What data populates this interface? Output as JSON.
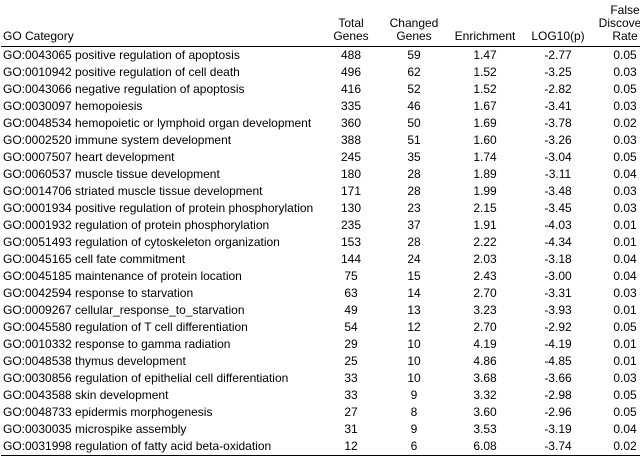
{
  "table": {
    "headers": [
      "GO Category",
      "Total\nGenes",
      "Changed\nGenes",
      "Enrichment",
      "LOG10(p)",
      "False\nDiscovery\nRate"
    ],
    "rows": [
      {
        "category": "GO:0043065 positive regulation of apoptosis",
        "total": "488",
        "changed": "59",
        "enrichment": "1.47",
        "log10p": "-2.77",
        "fdr": "0.05"
      },
      {
        "category": "GO:0010942 positive regulation of cell death",
        "total": "496",
        "changed": "62",
        "enrichment": "1.52",
        "log10p": "-3.25",
        "fdr": "0.03"
      },
      {
        "category": "GO:0043066 negative regulation of apoptosis",
        "total": "416",
        "changed": "52",
        "enrichment": "1.52",
        "log10p": "-2.82",
        "fdr": "0.05"
      },
      {
        "category": "GO:0030097 hemopoiesis",
        "total": "335",
        "changed": "46",
        "enrichment": "1.67",
        "log10p": "-3.41",
        "fdr": "0.03"
      },
      {
        "category": "GO:0048534 hemopoietic or lymphoid organ development",
        "total": "360",
        "changed": "50",
        "enrichment": "1.69",
        "log10p": "-3.78",
        "fdr": "0.02"
      },
      {
        "category": "GO:0002520 immune system development",
        "total": "388",
        "changed": "51",
        "enrichment": "1.60",
        "log10p": "-3.26",
        "fdr": "0.03"
      },
      {
        "category": "GO:0007507 heart development",
        "total": "245",
        "changed": "35",
        "enrichment": "1.74",
        "log10p": "-3.04",
        "fdr": "0.05"
      },
      {
        "category": "GO:0060537 muscle tissue development",
        "total": "180",
        "changed": "28",
        "enrichment": "1.89",
        "log10p": "-3.11",
        "fdr": "0.04"
      },
      {
        "category": "GO:0014706 striated muscle tissue development",
        "total": "171",
        "changed": "28",
        "enrichment": "1.99",
        "log10p": "-3.48",
        "fdr": "0.03"
      },
      {
        "category": "GO:0001934 positive regulation of protein phosphorylation",
        "total": "130",
        "changed": "23",
        "enrichment": "2.15",
        "log10p": "-3.45",
        "fdr": "0.03"
      },
      {
        "category": "GO:0001932 regulation of protein phosphorylation",
        "total": "235",
        "changed": "37",
        "enrichment": "1.91",
        "log10p": "-4.03",
        "fdr": "0.01"
      },
      {
        "category": "GO:0051493 regulation of cytoskeleton organization",
        "total": "153",
        "changed": "28",
        "enrichment": "2.22",
        "log10p": "-4.34",
        "fdr": "0.01"
      },
      {
        "category": "GO:0045165 cell fate commitment",
        "total": "144",
        "changed": "24",
        "enrichment": "2.03",
        "log10p": "-3.18",
        "fdr": "0.04"
      },
      {
        "category": "GO:0045185 maintenance of protein location",
        "total": "75",
        "changed": "15",
        "enrichment": "2.43",
        "log10p": "-3.00",
        "fdr": "0.04"
      },
      {
        "category": "GO:0042594 response to starvation",
        "total": "63",
        "changed": "14",
        "enrichment": "2.70",
        "log10p": "-3.31",
        "fdr": "0.03"
      },
      {
        "category": "GO:0009267 cellular_response_to_starvation",
        "total": "49",
        "changed": "13",
        "enrichment": "3.23",
        "log10p": "-3.93",
        "fdr": "0.01"
      },
      {
        "category": "GO:0045580 regulation of T cell differentiation",
        "total": "54",
        "changed": "12",
        "enrichment": "2.70",
        "log10p": "-2.92",
        "fdr": "0.05"
      },
      {
        "category": "GO:0010332 response to gamma radiation",
        "total": "29",
        "changed": "10",
        "enrichment": "4.19",
        "log10p": "-4.19",
        "fdr": "0.01"
      },
      {
        "category": "GO:0048538 thymus development",
        "total": "25",
        "changed": "10",
        "enrichment": "4.86",
        "log10p": "-4.85",
        "fdr": "0.01"
      },
      {
        "category": "GO:0030856 regulation of epithelial cell differentiation",
        "total": "33",
        "changed": "10",
        "enrichment": "3.68",
        "log10p": "-3.66",
        "fdr": "0.03"
      },
      {
        "category": "GO:0043588 skin development",
        "total": "33",
        "changed": "9",
        "enrichment": "3.32",
        "log10p": "-2.98",
        "fdr": "0.05"
      },
      {
        "category": "GO:0048733 epidermis morphogenesis",
        "total": "27",
        "changed": "8",
        "enrichment": "3.60",
        "log10p": "-2.96",
        "fdr": "0.05"
      },
      {
        "category": "GO:0030035 microspike assembly",
        "total": "31",
        "changed": "9",
        "enrichment": "3.53",
        "log10p": "-3.19",
        "fdr": "0.04"
      },
      {
        "category": "GO:0031998 regulation of fatty acid beta-oxidation",
        "total": "12",
        "changed": "6",
        "enrichment": "6.08",
        "log10p": "-3.74",
        "fdr": "0.02"
      }
    ]
  }
}
